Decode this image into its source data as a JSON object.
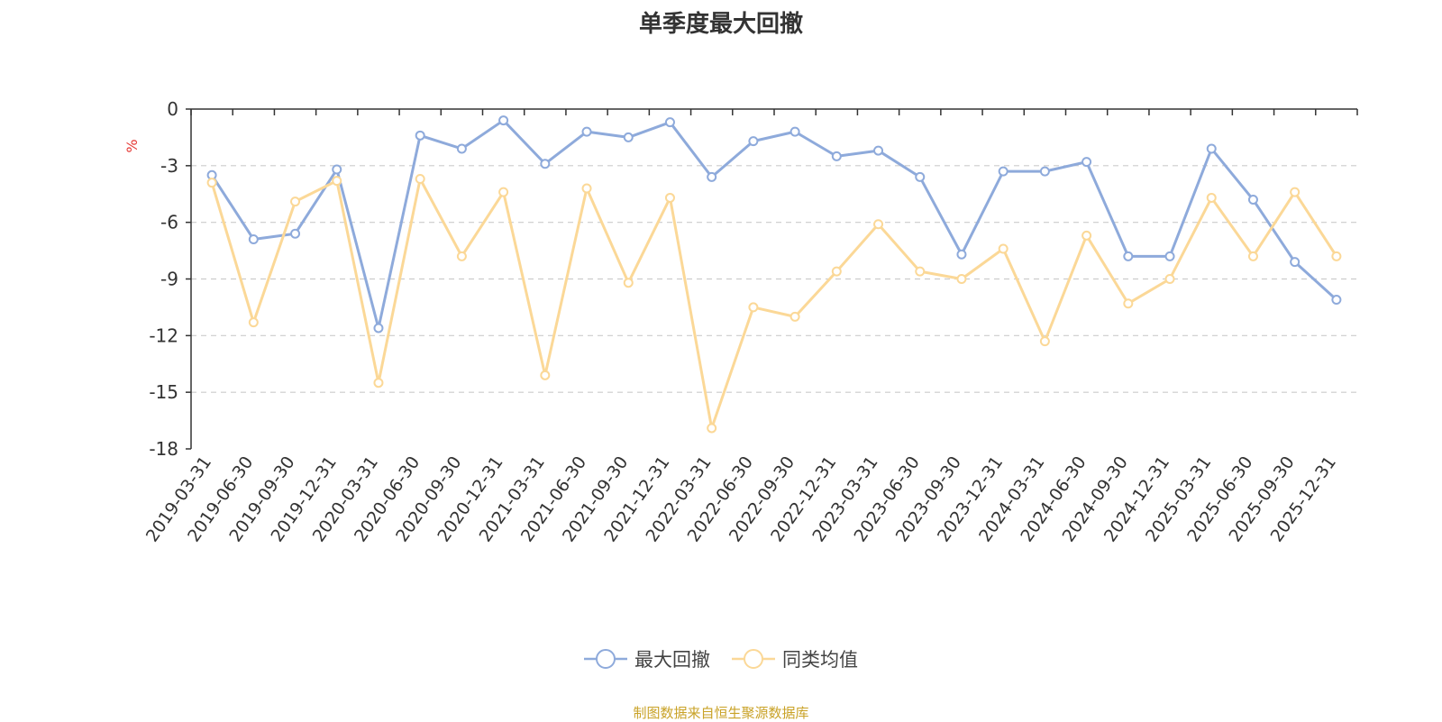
{
  "colors": {
    "series_primary": "#8eaadb",
    "series_secondary": "#fbd897",
    "axis": "#333333",
    "grid": "#cccccc",
    "ylabel": "#e53935",
    "source": "#c9a227"
  },
  "chart_data": {
    "type": "line",
    "title": "单季度最大回撤",
    "ylabel": "%",
    "xlabel": "",
    "ylim": [
      -18,
      0
    ],
    "yticks": [
      0,
      -3,
      -6,
      -9,
      -12,
      -15,
      -18
    ],
    "grid": "horizontal dashed",
    "legend_position": "bottom-center",
    "x": [
      "2019-03-31",
      "2019-06-30",
      "2019-09-30",
      "2019-12-31",
      "2020-03-31",
      "2020-06-30",
      "2020-09-30",
      "2020-12-31",
      "2021-03-31",
      "2021-06-30",
      "2021-09-30",
      "2021-12-31",
      "2022-03-31",
      "2022-06-30",
      "2022-09-30",
      "2022-12-31",
      "2023-03-31",
      "2023-06-30",
      "2023-09-30",
      "2023-12-31",
      "2024-03-31",
      "2024-06-30",
      "2024-09-30",
      "2024-12-31",
      "2025-03-31",
      "2025-06-30",
      "2025-09-30",
      "2025-12-31"
    ],
    "series": [
      {
        "name": "最大回撤",
        "values": [
          -3.5,
          -6.9,
          -6.6,
          -3.2,
          -11.6,
          -1.4,
          -2.1,
          -0.6,
          -2.9,
          -1.2,
          -1.5,
          -0.7,
          -3.6,
          -1.7,
          -1.2,
          -2.5,
          -2.2,
          -3.6,
          -7.7,
          -3.3,
          -3.3,
          -2.8,
          -7.8,
          -7.8,
          -2.1,
          -4.8,
          -8.1,
          -10.1
        ]
      },
      {
        "name": "同类均值",
        "values": [
          -3.9,
          -11.3,
          -4.9,
          -3.8,
          -14.5,
          -3.7,
          -7.8,
          -4.4,
          -14.1,
          -4.2,
          -9.2,
          -4.7,
          -16.9,
          -10.5,
          -11.0,
          -8.6,
          -6.1,
          -8.6,
          -9.0,
          -7.4,
          -12.3,
          -6.7,
          -10.3,
          -9.0,
          -4.7,
          -7.8,
          -4.4,
          -7.8
        ]
      }
    ]
  },
  "source_note": "制图数据来自恒生聚源数据库"
}
